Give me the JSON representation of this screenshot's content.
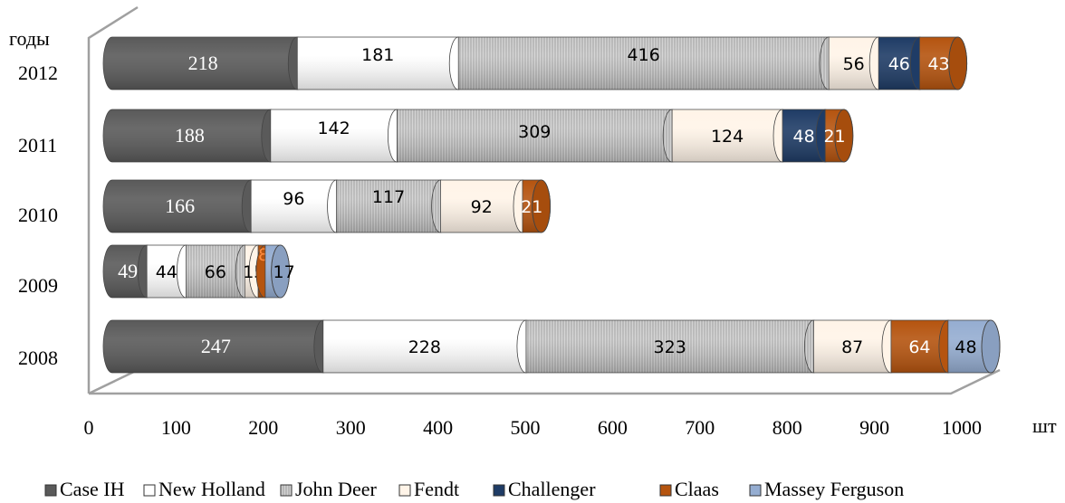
{
  "chart_data": {
    "type": "bar",
    "orientation": "horizontal",
    "stacked": true,
    "style": "3d-cylinder",
    "categories": [
      "2008",
      "2009",
      "2010",
      "2011",
      "2012"
    ],
    "series": [
      {
        "name": "Case IH",
        "values": [
          247,
          49,
          166,
          188,
          218
        ],
        "color": "#5a5a5a",
        "pattern": "solid"
      },
      {
        "name": "New Holland",
        "values": [
          228,
          44,
          96,
          142,
          181
        ],
        "color": "#ffffff",
        "pattern": "solid"
      },
      {
        "name": "John Deer",
        "values": [
          323,
          66,
          117,
          309,
          416
        ],
        "color": "#cfcfcf",
        "pattern": "lines"
      },
      {
        "name": "Fendt",
        "values": [
          87,
          15,
          92,
          124,
          56
        ],
        "color": "#fff4e8",
        "pattern": "solid"
      },
      {
        "name": "Challenger",
        "values": [
          0,
          0,
          0,
          48,
          46
        ],
        "color": "#1f3c66",
        "pattern": "solid"
      },
      {
        "name": "Claas",
        "values": [
          64,
          8,
          21,
          21,
          43
        ],
        "color": "#b5540f",
        "pattern": "solid"
      },
      {
        "name": "Massey Ferguson",
        "values": [
          48,
          17,
          0,
          0,
          0
        ],
        "color": "#95add1",
        "pattern": "solid"
      }
    ],
    "xlim": [
      0,
      1000
    ],
    "xticks": [
      "0",
      "100",
      "200",
      "300",
      "400",
      "500",
      "600",
      "700",
      "800",
      "900",
      "1000"
    ],
    "xlabel": "шт",
    "ylabel": "годы",
    "grid": false,
    "legend": "bottom"
  }
}
